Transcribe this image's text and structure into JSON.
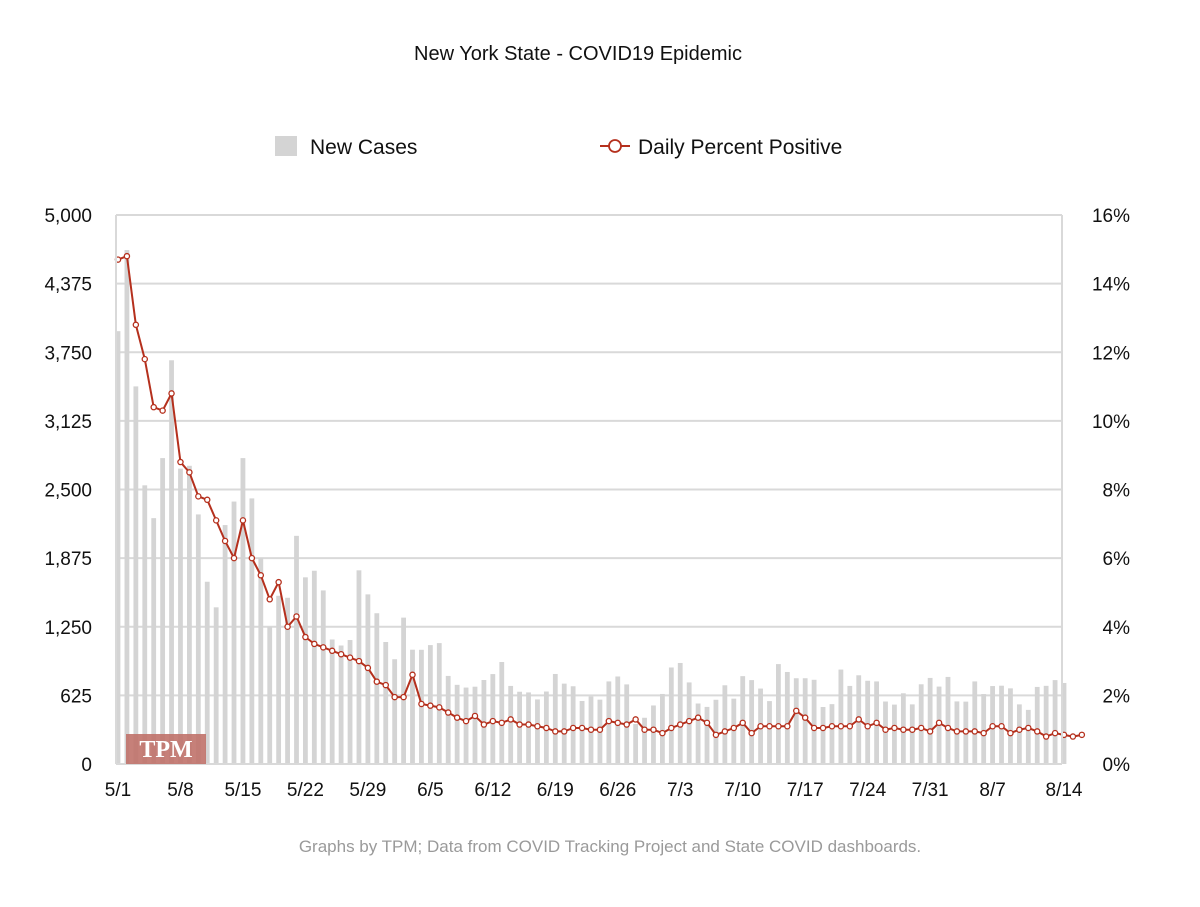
{
  "chart_data": {
    "type": "bar",
    "title": "New York State - COVID19 Epidemic",
    "x_tick_labels": [
      "5/1",
      "5/8",
      "5/15",
      "5/22",
      "5/29",
      "6/5",
      "6/12",
      "6/19",
      "6/26",
      "7/3",
      "7/10",
      "7/17",
      "7/24",
      "7/31",
      "8/7",
      "8/14"
    ],
    "y_left": {
      "ticks": [
        "5,000",
        "4,375",
        "3,750",
        "3,125",
        "2,500",
        "1,875",
        "1,250",
        "625",
        "0"
      ],
      "range": [
        0,
        5000
      ]
    },
    "y_right": {
      "ticks": [
        "16%",
        "14%",
        "12%",
        "10%",
        "8%",
        "6%",
        "4%",
        "2%",
        "0%"
      ],
      "range": [
        0,
        16
      ]
    },
    "legend": {
      "placement": "top",
      "entries": [
        {
          "name": "New Cases",
          "marker": "square",
          "color": "#d4d4d4"
        },
        {
          "name": "Daily Percent Positive",
          "marker": "circle-line",
          "color": "#b5301d"
        }
      ]
    },
    "series": [
      {
        "name": "New Cases",
        "kind": "bar",
        "color": "#d4d4d4",
        "values": [
          3942,
          4681,
          3439,
          2538,
          2239,
          2786,
          3677,
          2690,
          2716,
          2273,
          1660,
          1427,
          2176,
          2390,
          2786,
          2419,
          1877,
          1250,
          1532,
          1514,
          2078,
          1700,
          1760,
          1581,
          1134,
          1079,
          1129,
          1764,
          1545,
          1373,
          1111,
          954,
          1333,
          1041,
          1040,
          1083,
          1101,
          802,
          721,
          696,
          704,
          765,
          819,
          929,
          711,
          658,
          652,
          588,
          660,
          820,
          732,
          708,
          574,
          615,
          586,
          752,
          797,
          725,
          364,
          421,
          533,
          638,
          879,
          920,
          743,
          551,
          520,
          585,
          717,
          595,
          800,
          764,
          687,
          573,
          910,
          838,
          781,
          781,
          767,
          519,
          545,
          860,
          711,
          808,
          758,
          752,
          569,
          541,
          644,
          543,
          726,
          784,
          705,
          793,
          570,
          568,
          752,
          637,
          710,
          713,
          689,
          543,
          493,
          702,
          712,
          764,
          738
        ]
      },
      {
        "name": "Daily Percent Positive",
        "kind": "line",
        "color": "#b5301d",
        "values": [
          14.7,
          14.8,
          12.8,
          11.8,
          10.4,
          10.3,
          10.8,
          8.8,
          8.5,
          7.8,
          7.7,
          7.1,
          6.5,
          6.0,
          7.1,
          6.0,
          5.5,
          4.8,
          5.3,
          4.0,
          4.3,
          3.7,
          3.5,
          3.4,
          3.3,
          3.2,
          3.1,
          3.0,
          2.8,
          2.4,
          2.3,
          1.95,
          1.95,
          2.6,
          1.75,
          1.7,
          1.65,
          1.5,
          1.35,
          1.25,
          1.4,
          1.15,
          1.25,
          1.2,
          1.3,
          1.15,
          1.15,
          1.1,
          1.05,
          0.95,
          0.95,
          1.05,
          1.05,
          1.0,
          1.0,
          1.25,
          1.2,
          1.15,
          1.3,
          1.0,
          1.0,
          0.9,
          1.05,
          1.15,
          1.25,
          1.35,
          1.2,
          0.85,
          0.95,
          1.05,
          1.2,
          0.9,
          1.1,
          1.1,
          1.1,
          1.1,
          1.55,
          1.35,
          1.05,
          1.05,
          1.1,
          1.1,
          1.1,
          1.3,
          1.1,
          1.2,
          1.0,
          1.05,
          1.0,
          1.0,
          1.05,
          0.95,
          1.2,
          1.05,
          0.95,
          0.95,
          0.95,
          0.9,
          1.1,
          1.1,
          0.9,
          1.0,
          1.05,
          0.95,
          0.8,
          0.9,
          0.85,
          0.8,
          0.85
        ]
      }
    ],
    "grid": true
  },
  "watermark": "TPM",
  "footer": "Graphs by TPM; Data from COVID Tracking Project and State COVID dashboards."
}
